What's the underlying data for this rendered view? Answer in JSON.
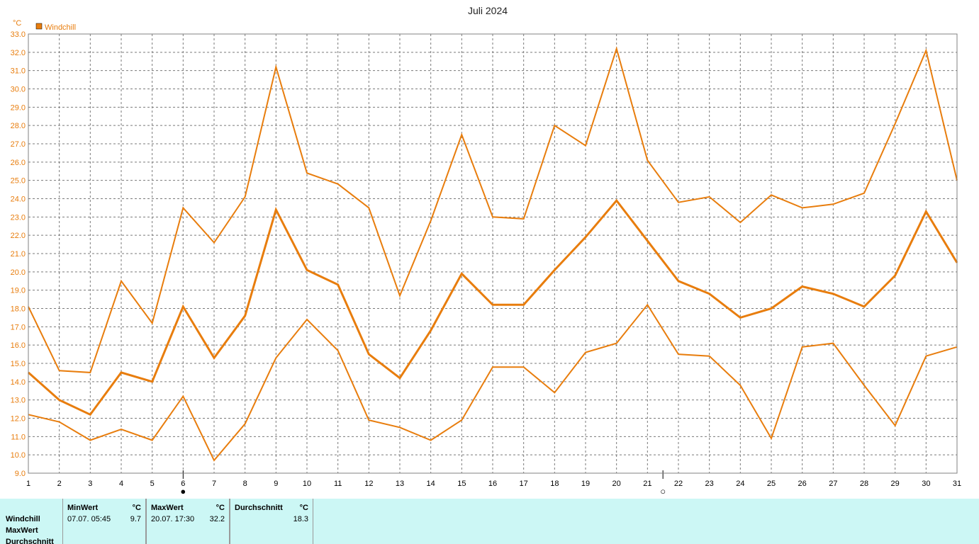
{
  "chart_data": {
    "type": "line",
    "title": "Juli 2024",
    "ylabel": "°C",
    "ylim": [
      9.0,
      33.0
    ],
    "yticks": [
      "9.0",
      "10.0",
      "11.0",
      "12.0",
      "13.0",
      "14.0",
      "15.0",
      "16.0",
      "17.0",
      "18.0",
      "19.0",
      "20.0",
      "21.0",
      "22.0",
      "23.0",
      "24.0",
      "25.0",
      "26.0",
      "27.0",
      "28.0",
      "29.0",
      "30.0",
      "31.0",
      "32.0",
      "33.0"
    ],
    "x": [
      1,
      2,
      3,
      4,
      5,
      6,
      7,
      8,
      9,
      10,
      11,
      12,
      13,
      14,
      15,
      16,
      17,
      18,
      19,
      20,
      21,
      22,
      23,
      24,
      25,
      26,
      27,
      28,
      29,
      30,
      31
    ],
    "legend": [
      "Windchill"
    ],
    "grid": true,
    "series": [
      {
        "role": "max",
        "color": "#E87D0D",
        "width": 2,
        "values": [
          18.1,
          14.6,
          14.5,
          19.5,
          17.2,
          23.5,
          21.6,
          24.1,
          31.2,
          25.4,
          24.8,
          23.5,
          18.7,
          22.8,
          27.5,
          23.0,
          22.9,
          28.0,
          26.9,
          32.2,
          26.1,
          23.8,
          24.1,
          22.7,
          24.2,
          23.5,
          23.7,
          24.3,
          28.1,
          32.1,
          25.0
        ]
      },
      {
        "role": "mean",
        "color": "#E87D0D",
        "width": 3,
        "values": [
          14.5,
          13.0,
          12.2,
          14.5,
          14.0,
          18.1,
          15.3,
          17.6,
          23.4,
          20.1,
          19.3,
          15.5,
          14.2,
          16.8,
          19.9,
          18.2,
          18.2,
          20.1,
          21.9,
          23.9,
          21.7,
          19.5,
          18.8,
          17.5,
          18.0,
          19.2,
          18.8,
          18.1,
          19.8,
          23.3,
          20.5
        ]
      },
      {
        "role": "min",
        "color": "#E87D0D",
        "width": 2,
        "values": [
          12.2,
          11.8,
          10.8,
          11.4,
          10.8,
          13.2,
          9.7,
          11.7,
          15.3,
          17.4,
          15.7,
          11.9,
          11.5,
          10.8,
          11.9,
          14.8,
          14.8,
          13.4,
          15.6,
          16.1,
          18.2,
          15.5,
          15.4,
          13.8,
          10.9,
          15.9,
          16.1,
          13.8,
          11.6,
          15.4,
          15.9
        ]
      }
    ],
    "moon_markers": [
      {
        "day": 6,
        "symbol": "●",
        "name": "new-moon-icon"
      },
      {
        "day": 21.5,
        "symbol": "○",
        "name": "full-moon-icon"
      }
    ]
  },
  "panel": {
    "row_labels": [
      "Windchill",
      "MaxWert",
      "Durchschnitt"
    ],
    "columns": [
      {
        "header": "MinWert",
        "unit": "°C",
        "datetime": "07.07.  05:45",
        "value": "9.7"
      },
      {
        "header": "MaxWert",
        "unit": "°C",
        "datetime": "20.07.  17:30",
        "value": "32.2"
      },
      {
        "header": "Durchschnitt",
        "unit": "°C",
        "datetime": "",
        "value": "18.3"
      }
    ]
  }
}
